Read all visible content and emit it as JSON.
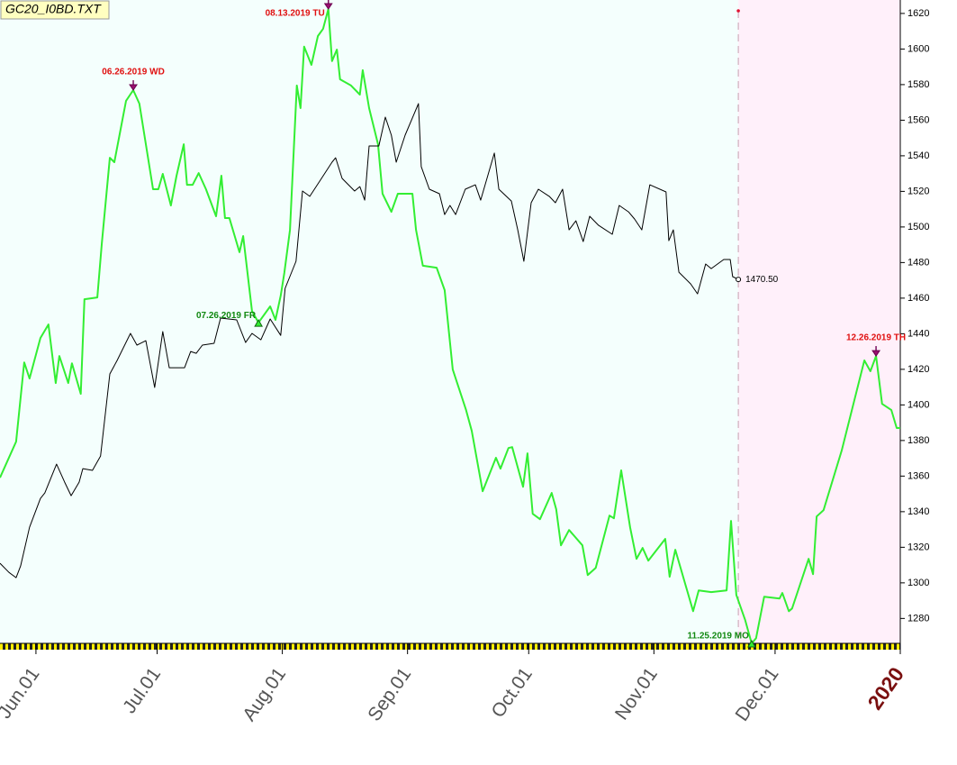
{
  "chart_data": {
    "type": "line",
    "title": "GC20_I0BD.TXT",
    "xlim": [
      -8.9,
      214
    ],
    "ylim": [
      1266,
      1623.5
    ],
    "yticks": [
      1280,
      1300,
      1320,
      1340,
      1360,
      1380,
      1400,
      1420,
      1440,
      1460,
      1480,
      1500,
      1520,
      1540,
      1560,
      1580,
      1600,
      1620
    ],
    "xticks": [
      {
        "value": 0,
        "label": "Jun.01"
      },
      {
        "value": 30,
        "label": "Jul.01"
      },
      {
        "value": 61,
        "label": "Aug.01"
      },
      {
        "value": 92,
        "label": "Sep.01"
      },
      {
        "value": 122,
        "label": "Oct.01"
      },
      {
        "value": 153,
        "label": "Nov.01"
      },
      {
        "value": 183,
        "label": "Dec.01"
      },
      {
        "value": 214,
        "label": "2020"
      }
    ],
    "divider_x": 173.9,
    "series": [
      {
        "color": "#33ee33",
        "x": [
          -8.9,
          -4.9,
          -2.9,
          -1.6,
          1.1,
          3.1,
          4.9,
          5.8,
          8.0,
          8.9,
          11.1,
          12.0,
          15.2,
          16.3,
          18.3,
          19.4,
          22.3,
          24.1,
          25.6,
          29.0,
          30.3,
          31.4,
          33.4,
          34.8,
          36.6,
          37.4,
          38.8,
          40.3,
          42.1,
          44.6,
          45.9,
          46.8,
          47.9,
          50.4,
          51.3,
          53.5,
          55.1,
          58.0,
          59.3,
          60.6,
          61.5,
          62.9,
          64.6,
          65.5,
          66.4,
          68.2,
          69.8,
          71.1,
          72.4,
          73.3,
          74.5,
          75.3,
          78.0,
          80.2,
          80.9,
          82.5,
          84.7,
          85.8,
          88.0,
          89.6,
          93.2,
          94.1,
          95.8,
          99.2,
          101.2,
          103.2,
          106.5,
          107.9,
          110.6,
          113.9,
          115.0,
          117.0,
          117.9,
          120.6,
          121.7,
          123.0,
          124.8,
          127.7,
          128.8,
          130.0,
          132.0,
          135.3,
          136.6,
          138.6,
          142.0,
          143.1,
          144.9,
          147.1,
          148.7,
          150.2,
          151.6,
          155.8,
          156.9,
          158.3,
          162.7,
          164.1,
          167.2,
          171.0,
          172.1,
          173.4,
          175.6,
          177.2,
          178.3,
          180.3,
          184.1,
          184.8,
          186.4,
          187.2,
          191.3,
          192.4,
          193.3,
          195.0,
          199.5,
          205.1,
          206.6,
          208.0,
          209.5,
          211.8,
          213.1,
          214.0
        ],
        "values": [
          1359.1,
          1379.4,
          1423.9,
          1414.8,
          1437.6,
          1445.2,
          1412.3,
          1427.5,
          1412.3,
          1423.4,
          1406.2,
          1459.4,
          1460.4,
          1490.8,
          1538.9,
          1536.4,
          1570.9,
          1576.9,
          1569.3,
          1521.2,
          1521.2,
          1529.8,
          1512.1,
          1528.8,
          1546.5,
          1523.7,
          1523.7,
          1530.3,
          1521.2,
          1506.0,
          1528.8,
          1505.0,
          1505.0,
          1485.8,
          1494.9,
          1452.8,
          1446.2,
          1455.4,
          1447.8,
          1461.4,
          1474.1,
          1498.4,
          1579.5,
          1566.8,
          1601.3,
          1591.1,
          1607.3,
          1611.4,
          1622.5,
          1593.2,
          1599.7,
          1583.0,
          1579.5,
          1574.4,
          1588.1,
          1566.8,
          1546.5,
          1518.7,
          1508.5,
          1518.7,
          1518.7,
          1498.4,
          1478.2,
          1477.1,
          1464.5,
          1419.9,
          1397.1,
          1385.4,
          1351.5,
          1370.3,
          1364.2,
          1375.8,
          1376.3,
          1354.0,
          1372.8,
          1338.8,
          1335.8,
          1350.5,
          1341.4,
          1321.1,
          1329.7,
          1321.1,
          1304.4,
          1308.4,
          1337.8,
          1336.3,
          1363.2,
          1331.2,
          1313.5,
          1319.6,
          1312.5,
          1324.7,
          1303.4,
          1318.6,
          1284.1,
          1295.8,
          1294.8,
          1295.8,
          1334.8,
          1293.2,
          1279.1,
          1266.0,
          1268.9,
          1292.2,
          1291.2,
          1294.3,
          1284.1,
          1285.6,
          1313.5,
          1304.9,
          1337.3,
          1340.9,
          1374.3,
          1425.0,
          1418.9,
          1427.5,
          1400.6,
          1397.1,
          1387.0,
          1387.0
        ]
      },
      {
        "color": "#000000",
        "end_label": "1470.50",
        "x": [
          -8.9,
          -6.7,
          -4.9,
          -3.8,
          -1.6,
          1.1,
          2.2,
          5.1,
          7.1,
          8.7,
          10.7,
          11.6,
          14.0,
          16.0,
          18.3,
          20.1,
          23.4,
          25.0,
          27.2,
          29.4,
          31.4,
          33.0,
          36.8,
          38.3,
          39.7,
          41.2,
          44.1,
          45.7,
          49.7,
          51.9,
          53.5,
          55.7,
          58.0,
          60.6,
          61.7,
          64.4,
          66.0,
          67.8,
          70.4,
          73.3,
          74.2,
          75.8,
          78.9,
          80.2,
          81.4,
          82.5,
          84.9,
          86.5,
          88.0,
          89.2,
          91.4,
          94.7,
          95.4,
          97.4,
          99.9,
          101.2,
          102.5,
          103.9,
          106.3,
          108.8,
          110.1,
          113.5,
          114.6,
          117.7,
          119.3,
          120.8,
          122.6,
          124.4,
          127.1,
          128.6,
          130.4,
          132.0,
          133.7,
          135.5,
          137.1,
          139.3,
          142.7,
          144.4,
          146.7,
          148.2,
          150.0,
          152.0,
          156.0,
          156.7,
          157.8,
          159.2,
          162.1,
          163.8,
          165.8,
          167.2,
          170.3,
          171.9,
          172.5,
          173.9
        ],
        "values": [
          1311.0,
          1305.9,
          1302.9,
          1309.5,
          1331.2,
          1347.4,
          1350.5,
          1366.7,
          1356.6,
          1349.0,
          1356.6,
          1364.2,
          1363.2,
          1371.3,
          1417.4,
          1425.0,
          1440.2,
          1433.6,
          1436.1,
          1409.8,
          1441.2,
          1420.9,
          1420.9,
          1430.0,
          1429.0,
          1433.6,
          1434.6,
          1448.8,
          1447.8,
          1435.1,
          1440.2,
          1436.6,
          1448.3,
          1439.1,
          1465.5,
          1480.7,
          1520.2,
          1517.2,
          1526.3,
          1536.4,
          1538.9,
          1527.3,
          1520.2,
          1522.7,
          1515.1,
          1545.5,
          1545.5,
          1561.7,
          1551.6,
          1536.4,
          1551.6,
          1569.3,
          1533.9,
          1521.2,
          1518.7,
          1507.0,
          1512.1,
          1507.0,
          1521.2,
          1523.7,
          1515.1,
          1541.5,
          1521.2,
          1514.6,
          1498.4,
          1480.7,
          1513.6,
          1521.2,
          1517.2,
          1513.6,
          1521.2,
          1498.4,
          1503.5,
          1491.8,
          1506.0,
          1500.9,
          1495.9,
          1512.1,
          1508.5,
          1504.5,
          1498.4,
          1523.7,
          1519.7,
          1492.3,
          1498.4,
          1474.6,
          1468.0,
          1462.4,
          1479.2,
          1476.6,
          1481.7,
          1481.7,
          1472.1,
          1470.5
        ]
      }
    ],
    "annotations": [
      {
        "text": "06.26.2019 WD",
        "x": 24.1,
        "y": 1576.9,
        "color": "#e01010",
        "marker": "down"
      },
      {
        "text": "08.13.2019 TU",
        "x": 72.4,
        "y": 1622.5,
        "color": "#e01010",
        "marker": "down"
      },
      {
        "text": "07.26.2019 FR",
        "x": 55.1,
        "y": 1446.2,
        "color": "#118811",
        "marker": "up"
      },
      {
        "text": "11.25.2019 MO",
        "x": 177.2,
        "y": 1266.0,
        "color": "#118811",
        "marker": "up"
      },
      {
        "text": "12.26.2019 TH",
        "x": 208.0,
        "y": 1427.5,
        "color": "#e01010",
        "marker": "down"
      }
    ]
  }
}
